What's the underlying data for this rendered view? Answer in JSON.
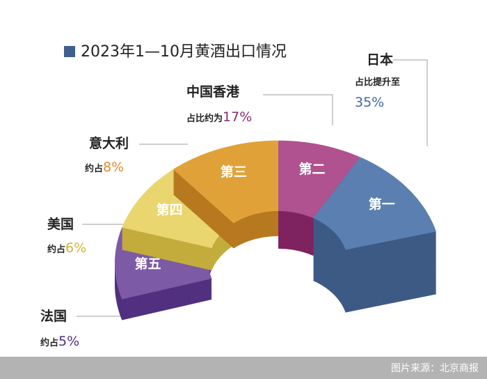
{
  "chart_data": {
    "type": "donut3d",
    "title": "2023年1—10月黄酒出口情况",
    "categories": [
      "日本",
      "中国香港",
      "意大利",
      "美国",
      "法国"
    ],
    "ranks": [
      "第一",
      "第二",
      "第三",
      "第四",
      "第五"
    ],
    "prefixes": [
      "占比提升至",
      "占比约为",
      "约占",
      "约占",
      "约占"
    ],
    "values": [
      35,
      17,
      8,
      6,
      5
    ],
    "value_labels": [
      "35%",
      "17%",
      "8%",
      "6%",
      "5%"
    ],
    "colors": [
      "#5a7fb0",
      "#b0528f",
      "#e0a238",
      "#ead66e",
      "#7d5aa6"
    ],
    "side_colors": [
      "#3d5a85",
      "#7e2360",
      "#b7791f",
      "#c4ac3c",
      "#50307f"
    ],
    "label_colors": [
      "#3c6aa3",
      "#8a2d76",
      "#e08a30",
      "#d2b23a",
      "#4e2e86"
    ],
    "legend_color": "#3f5f8c",
    "source": "图片来源：北京商报"
  }
}
